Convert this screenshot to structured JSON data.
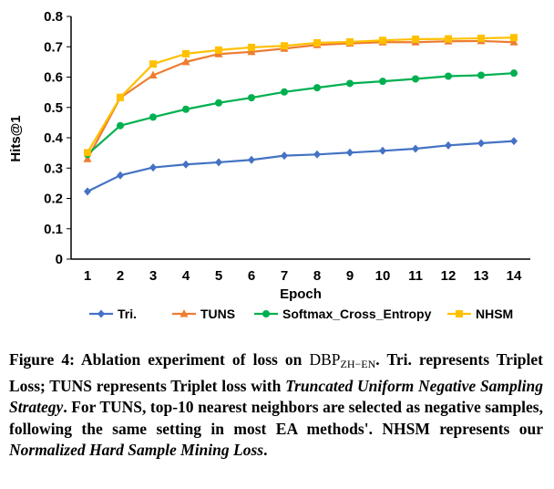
{
  "chart_data": {
    "type": "line",
    "title": "",
    "xlabel": "Epoch",
    "ylabel": "Hits@1",
    "x": [
      1,
      2,
      3,
      4,
      5,
      6,
      7,
      8,
      9,
      10,
      11,
      12,
      13,
      14
    ],
    "ylim": [
      0,
      0.8
    ],
    "yticks": [
      0,
      0.1,
      0.2,
      0.3,
      0.4,
      0.5,
      0.6,
      0.7,
      0.8
    ],
    "ytick_labels": [
      "0",
      "0.1",
      "0.2",
      "0.3",
      "0.4",
      "0.5",
      "0.6",
      "0.7",
      "0.8"
    ],
    "grid": false,
    "legend_position": "bottom",
    "series": [
      {
        "name": "Tri.",
        "color": "#4472C4",
        "marker": "diamond",
        "values": [
          0.223,
          0.276,
          0.302,
          0.312,
          0.319,
          0.327,
          0.341,
          0.345,
          0.351,
          0.357,
          0.364,
          0.375,
          0.382,
          0.389
        ]
      },
      {
        "name": "TUNS",
        "color": "#ED7D31",
        "marker": "triangle",
        "values": [
          0.33,
          0.532,
          0.606,
          0.65,
          0.676,
          0.683,
          0.694,
          0.706,
          0.711,
          0.715,
          0.715,
          0.718,
          0.719,
          0.715
        ]
      },
      {
        "name": "Softmax_Cross_Entropy",
        "color": "#00B050",
        "marker": "circle",
        "values": [
          0.345,
          0.44,
          0.468,
          0.494,
          0.515,
          0.532,
          0.551,
          0.565,
          0.579,
          0.586,
          0.594,
          0.603,
          0.606,
          0.613
        ]
      },
      {
        "name": "NHSM",
        "color": "#FFC000",
        "marker": "square",
        "values": [
          0.351,
          0.533,
          0.643,
          0.677,
          0.689,
          0.698,
          0.703,
          0.713,
          0.716,
          0.721,
          0.725,
          0.726,
          0.728,
          0.73
        ]
      }
    ]
  },
  "caption": {
    "fig_label": "Figure 4: Ablation experiment of loss on",
    "dataset_main": "DBP",
    "dataset_sub": "ZH−EN",
    "period": ".",
    "text1": " Tri. represents Triplet Loss; TUNS represents Triplet loss with ",
    "italic1": "Truncated Uniform Negative Sampling Strategy",
    "text2": ". For TUNS, top-10 nearest neighbors are selected as negative samples, following the same setting in most EA methods'. NHSM represents our ",
    "italic2": "Normalized Hard Sample Mining Loss",
    "text3": "."
  }
}
